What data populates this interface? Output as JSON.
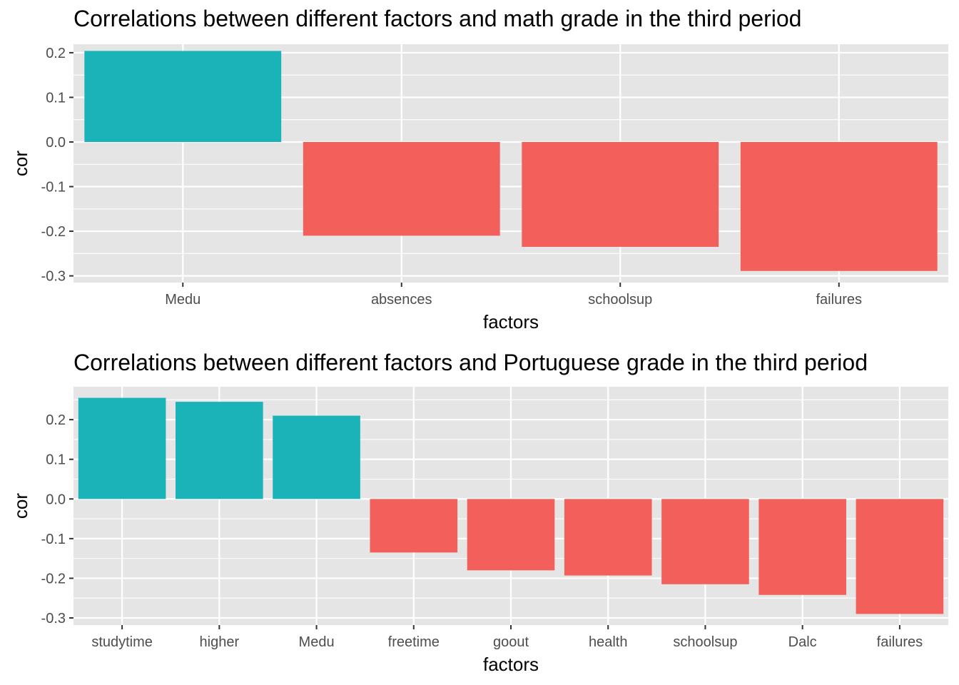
{
  "colors": {
    "positive": "#1ab3b8",
    "negative": "#f3605c",
    "panel": "#e5e5e5",
    "grid": "#ffffff",
    "tick": "#333333",
    "tick_label": "#4d4d4d"
  },
  "chart_data": [
    {
      "type": "bar",
      "title": "Correlations between different factors and math grade in the third period",
      "xlabel": "factors",
      "ylabel": "cor",
      "categories": [
        "Medu",
        "absences",
        "schoolsup",
        "failures"
      ],
      "values": [
        0.204,
        -0.21,
        -0.235,
        -0.289
      ],
      "y_ticks": [
        0.2,
        0.1,
        0.0,
        -0.1,
        -0.2,
        -0.3
      ],
      "y_tick_labels": [
        "0.2",
        "0.1",
        "0.0",
        "-0.1",
        "-0.2",
        "-0.3"
      ],
      "ylim": [
        -0.315,
        0.219
      ],
      "grid": true,
      "legend": "none"
    },
    {
      "type": "bar",
      "title": "Correlations between different factors and Portuguese grade in the third period",
      "xlabel": "factors",
      "ylabel": "cor",
      "categories": [
        "studytime",
        "higher",
        "Medu",
        "freetime",
        "goout",
        "health",
        "schoolsup",
        "Dalc",
        "failures"
      ],
      "values": [
        0.255,
        0.245,
        0.21,
        -0.135,
        -0.18,
        -0.193,
        -0.215,
        -0.242,
        -0.29
      ],
      "y_ticks": [
        0.2,
        0.1,
        0.0,
        -0.1,
        -0.2,
        -0.3
      ],
      "y_tick_labels": [
        "0.2",
        "0.1",
        "0.0",
        "-0.1",
        "-0.2",
        "-0.3"
      ],
      "ylim": [
        -0.318,
        0.283
      ],
      "grid": true,
      "legend": "none"
    }
  ]
}
